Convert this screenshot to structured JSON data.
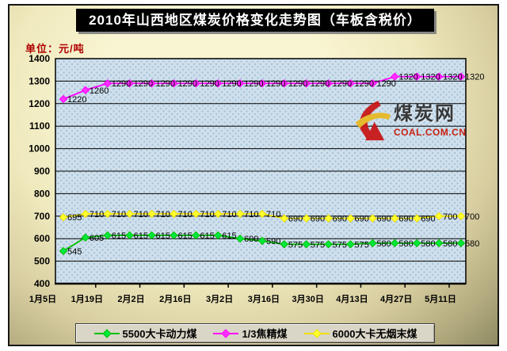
{
  "header": {
    "unit_label": "单位：元/吨"
  },
  "watermark": {
    "site_name": "煤炭网",
    "site_url": "COAL.COM.CN",
    "logo_colors": {
      "red": "#c81414",
      "yellow": "#e8b820"
    }
  },
  "chart_data": {
    "type": "line",
    "title": "2010年山西地区煤炭价格变化走势图（车板含税价）",
    "unit": "元/吨",
    "grid": "horizontal",
    "legend_position": "bottom",
    "data_labels": true,
    "y_axis": {
      "min": 400,
      "max": 1400,
      "ticks": [
        1400,
        1300,
        1200,
        1100,
        1000,
        900,
        800,
        700,
        600,
        500,
        400
      ]
    },
    "x_axis": {
      "tick_labels": [
        "1月5日",
        "1月19日",
        "2月2日",
        "2月16日",
        "3月2日",
        "3月16日",
        "3月30日",
        "4月13日",
        "4月27日",
        "5月11日"
      ],
      "ticks_every_n_points": 2
    },
    "series": [
      {
        "name": "5500大卡动力煤",
        "color": "#00c000",
        "marker_color": "#00e83c",
        "values": [
          545,
          605,
          615,
          615,
          615,
          615,
          615,
          615,
          600,
          590,
          575,
          575,
          575,
          575,
          580,
          580,
          580,
          580,
          580
        ]
      },
      {
        "name": "1/3焦精煤",
        "color": "#ff00ff",
        "marker_color": "#ff30ff",
        "values": [
          1220,
          1260,
          1290,
          1290,
          1290,
          1290,
          1290,
          1290,
          1290,
          1290,
          1290,
          1290,
          1290,
          1290,
          1290,
          1320,
          1320,
          1320,
          1320
        ]
      },
      {
        "name": "6000大卡无烟末煤",
        "color": "#f0e000",
        "marker_color": "#ffff30",
        "values": [
          695,
          710,
          710,
          710,
          710,
          710,
          710,
          710,
          710,
          710,
          690,
          690,
          690,
          690,
          690,
          690,
          690,
          700,
          700
        ]
      }
    ]
  }
}
